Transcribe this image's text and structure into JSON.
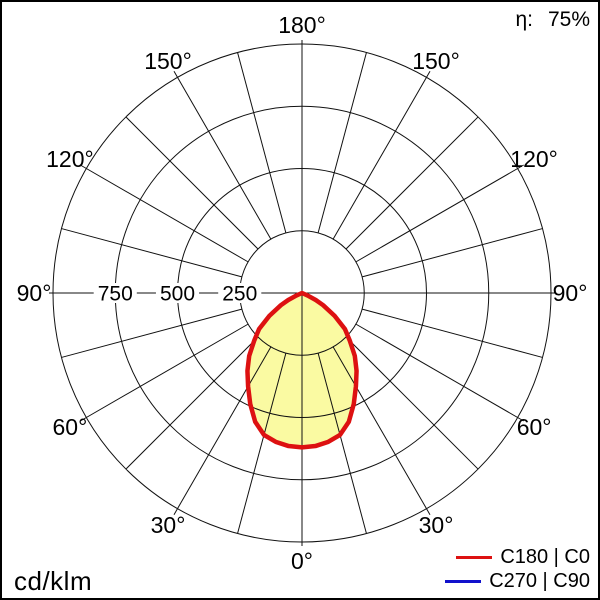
{
  "header": {
    "efficiency_label": "η:",
    "efficiency_value": "75%"
  },
  "footer": {
    "unit_label": "cd/klm"
  },
  "legend": {
    "items": [
      {
        "label": "C180 | C0",
        "color": "#dd1111"
      },
      {
        "label": "C270 | C90",
        "color": "#1111cc"
      }
    ]
  },
  "chart_data": {
    "type": "polar",
    "subtype": "luminous-intensity-distribution",
    "unit": "cd/klm",
    "efficiency_percent": 75,
    "angle_zero_position": "bottom",
    "grid": {
      "angle_step_deg": 15,
      "angle_label_step_deg": 30,
      "radial_gridlines": [
        250,
        500,
        750,
        1000
      ],
      "rmax": 1000,
      "grid_color": "#111111",
      "curve_fill_color": "#fafaa2"
    },
    "angle_labels": [
      {
        "deg": 0,
        "text": "0°"
      },
      {
        "deg": 30,
        "text": "30°"
      },
      {
        "deg": 60,
        "text": "60°"
      },
      {
        "deg": 90,
        "text": "90°"
      },
      {
        "deg": 120,
        "text": "120°"
      },
      {
        "deg": 150,
        "text": "150°"
      },
      {
        "deg": 180,
        "text": "180°"
      }
    ],
    "radial_axis_labels": [
      {
        "value": 750,
        "text": "750"
      },
      {
        "value": 500,
        "text": "500"
      },
      {
        "value": 250,
        "text": "250"
      }
    ],
    "series": [
      {
        "name": "C180 | C0",
        "color": "#dd1111",
        "fill_color": "#fafaa2",
        "symmetric": true,
        "points_deg_cdklm": [
          [
            0,
            620
          ],
          [
            5,
            617
          ],
          [
            10,
            607
          ],
          [
            15,
            590
          ],
          [
            20,
            550
          ],
          [
            25,
            492
          ],
          [
            30,
            433
          ],
          [
            35,
            382
          ],
          [
            40,
            330
          ],
          [
            45,
            272
          ],
          [
            50,
            225
          ],
          [
            55,
            160
          ],
          [
            60,
            98
          ],
          [
            63,
            62
          ],
          [
            66,
            25
          ],
          [
            68,
            0
          ]
        ]
      },
      {
        "name": "C270 | C90",
        "color": "#1111cc",
        "fill_color": "none",
        "symmetric": true,
        "points_deg_cdklm": [
          [
            0,
            620
          ],
          [
            5,
            617
          ],
          [
            10,
            607
          ],
          [
            15,
            590
          ],
          [
            20,
            550
          ],
          [
            25,
            492
          ],
          [
            30,
            433
          ],
          [
            35,
            382
          ],
          [
            40,
            330
          ],
          [
            45,
            272
          ],
          [
            50,
            225
          ],
          [
            55,
            160
          ],
          [
            60,
            98
          ],
          [
            63,
            62
          ],
          [
            66,
            25
          ],
          [
            68,
            0
          ]
        ]
      }
    ]
  }
}
